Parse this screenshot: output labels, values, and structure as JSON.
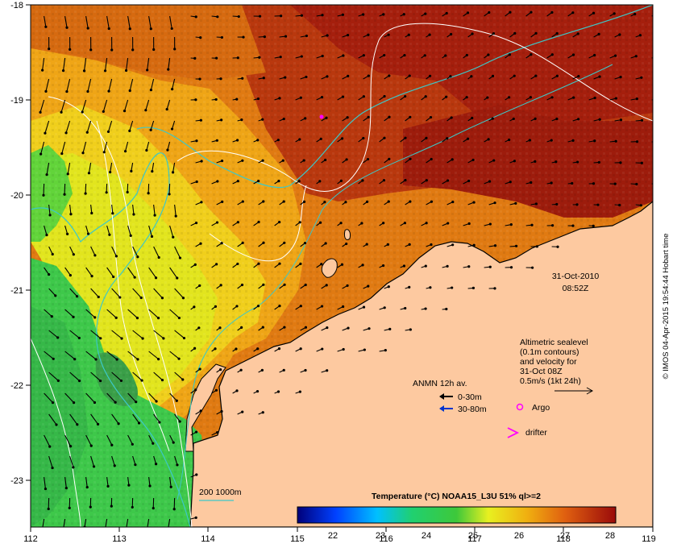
{
  "map": {
    "x_ticks": [
      "112",
      "113",
      "114",
      "115",
      "116",
      "117",
      "118",
      "119"
    ],
    "y_ticks": [
      "-18",
      "-19",
      "-20",
      "-21",
      "-22",
      "-23"
    ],
    "date_label": "31-Oct-2010",
    "time_label": "08:52Z",
    "altimetric_text": [
      "Altimetric sealevel",
      "(0.1m contours)",
      "and velocity for",
      "31-Oct 08Z",
      "0.5m/s (1kt 24h)"
    ],
    "anmn_title": "ANMN 12h av.",
    "anmn_items": [
      "0-30m",
      "30-80m"
    ],
    "argo_label": "Argo",
    "drifter_label": "drifter",
    "isobath_label": "200  1000m",
    "colorbar_title": "Temperature (°C) NOAA15_L3U 51% ql>=2",
    "colorbar_ticks": [
      "22",
      "23",
      "24",
      "25",
      "26",
      "27",
      "28"
    ],
    "side_credit": "© IMOS 04-Apr-2015 19:54:44 Hobart time",
    "colors": {
      "land": "#fdc9a0",
      "ocean_warm": "#a51f0d",
      "ocean_mid": "#e27c10",
      "ocean_cool": "#e8e61c",
      "ocean_cold": "#2ec44b",
      "isobath": "#3cc8c8",
      "contour": "#ffffff",
      "argo": "#ff00ff",
      "drifter": "#ff00ff",
      "anmn_shallow": "#000000",
      "anmn_deep": "#0033cc"
    }
  }
}
